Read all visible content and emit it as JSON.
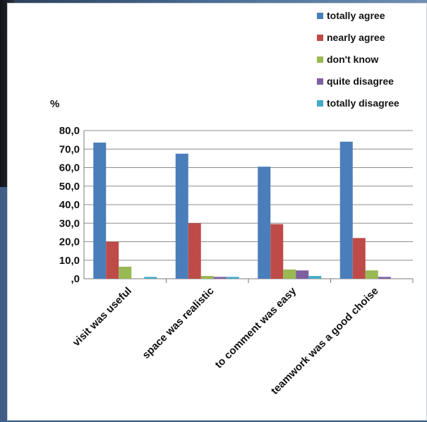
{
  "chart_data": {
    "type": "bar",
    "ylabel": "%",
    "ylim": [
      0,
      80
    ],
    "yticks": [
      "80,0",
      "70,0",
      "60,0",
      "50,0",
      "40,0",
      "30,0",
      "20,0",
      "10,0",
      ",0"
    ],
    "categories": [
      "visit was useful",
      "space was realistic",
      "to comment was easy",
      "teamwork was a good choise"
    ],
    "series": [
      {
        "name": "totally agree",
        "color": "#4a7ebb",
        "values": [
          73.5,
          67.5,
          60.5,
          74.0
        ]
      },
      {
        "name": "nearly agree",
        "color": "#be4b48",
        "values": [
          20.0,
          30.0,
          29.5,
          22.0
        ]
      },
      {
        "name": "don't know",
        "color": "#98b954",
        "values": [
          6.5,
          1.5,
          5.0,
          4.5
        ]
      },
      {
        "name": "quite disagree",
        "color": "#7d60a0",
        "values": [
          0.0,
          1.0,
          4.5,
          1.0
        ]
      },
      {
        "name": "totally disagree",
        "color": "#46aac5",
        "values": [
          1.0,
          1.0,
          1.5,
          0.0
        ]
      }
    ],
    "grid": true,
    "legend": "top-right"
  }
}
